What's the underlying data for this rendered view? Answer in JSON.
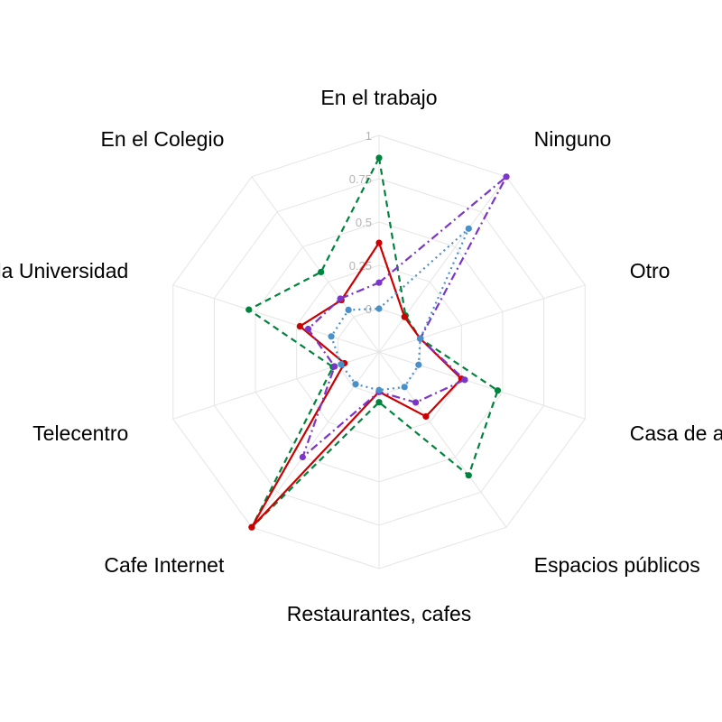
{
  "chart_data": {
    "type": "radar",
    "title": "",
    "categories": [
      "En el trabajo",
      "Ninguno",
      "Otro",
      "Casa de amigos/far",
      "Espacios públicos",
      "Restaurantes, cafes",
      "Cafe Internet",
      "Telecentro",
      "la Universidad",
      "En el Colegio"
    ],
    "radial_ticks": [
      "0",
      "0.25",
      "0.5",
      "0.75",
      "1"
    ],
    "rlim": [
      -0.25,
      1
    ],
    "grid": true,
    "series": [
      {
        "color": "#00843D",
        "style": "dashed",
        "values": [
          0.87,
          0.01,
          0.0,
          0.47,
          0.63,
          0.04,
          1.0,
          0.03,
          0.54,
          0.32
        ]
      },
      {
        "color": "#CC0000",
        "style": "solid",
        "values": [
          0.38,
          0.0,
          0.0,
          0.25,
          0.21,
          -0.02,
          1.0,
          -0.04,
          0.23,
          0.12
        ]
      },
      {
        "color": "#7B35C8",
        "style": "dashdot",
        "values": [
          0.15,
          1.0,
          0.0,
          0.27,
          0.11,
          -0.02,
          0.5,
          0.02,
          0.18,
          0.13
        ]
      },
      {
        "color": "#4A90C8",
        "style": "dotted",
        "values": [
          0.0,
          0.63,
          0.0,
          -0.01,
          0.0,
          -0.03,
          -0.02,
          -0.02,
          0.04,
          0.05
        ]
      }
    ]
  }
}
